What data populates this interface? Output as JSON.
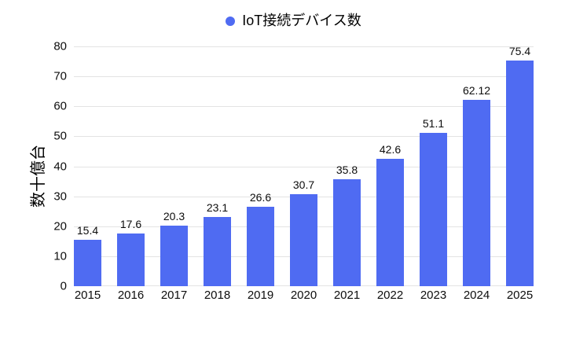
{
  "legend": {
    "label": "IoT接続デバイス数"
  },
  "colors": {
    "bar": "#4f6bf2",
    "grid": "#e3e3e3",
    "text": "#0d0d0d"
  },
  "chart_data": {
    "type": "bar",
    "title": "IoT接続デバイス数",
    "xlabel": "",
    "ylabel": "数十億台",
    "categories": [
      "2015",
      "2016",
      "2017",
      "2018",
      "2019",
      "2020",
      "2021",
      "2022",
      "2023",
      "2024",
      "2025"
    ],
    "values": [
      15.4,
      17.6,
      20.3,
      23.1,
      26.6,
      30.7,
      35.8,
      42.6,
      51.1,
      62.12,
      75.4
    ],
    "value_labels": [
      "15.4",
      "17.6",
      "20.3",
      "23.1",
      "26.6",
      "30.7",
      "35.8",
      "42.6",
      "51.1",
      "62.12",
      "75.4"
    ],
    "ylim": [
      0,
      80
    ],
    "yticks": [
      0,
      10,
      20,
      30,
      40,
      50,
      60,
      70,
      80
    ],
    "grid": true,
    "legend_position": "top"
  }
}
